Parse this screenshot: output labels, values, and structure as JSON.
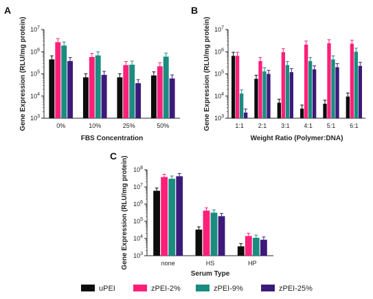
{
  "legend": {
    "items": [
      {
        "label": "uPEI",
        "color": "#0d0d0d"
      },
      {
        "label": "zPEI-2%",
        "color": "#ff1f78"
      },
      {
        "label": "zPEI-9%",
        "color": "#1a8c80"
      },
      {
        "label": "zPEI-25%",
        "color": "#3d1a7a"
      }
    ]
  },
  "chart_data": [
    {
      "panel": "A",
      "type": "bar",
      "yscale": "log",
      "ylim": [
        1000,
        10000000
      ],
      "yticks": [
        "10^3",
        "10^4",
        "10^5",
        "10^6",
        "10^7"
      ],
      "xlabel": "FBS Concentration",
      "ylabel": "Gene Expression (RLU/mg protein)",
      "categories": [
        "0%",
        "10%",
        "25%",
        "50%"
      ],
      "series": [
        {
          "name": "uPEI",
          "values": [
            450000,
            70000,
            70000,
            85000
          ]
        },
        {
          "name": "zPEI-2%",
          "values": [
            2700000,
            580000,
            250000,
            220000
          ]
        },
        {
          "name": "zPEI-9%",
          "values": [
            1900000,
            680000,
            260000,
            600000
          ]
        },
        {
          "name": "zPEI-25%",
          "values": [
            380000,
            90000,
            38000,
            62000
          ]
        }
      ]
    },
    {
      "panel": "B",
      "type": "bar",
      "yscale": "log",
      "ylim": [
        1000,
        10000000
      ],
      "yticks": [
        "10^3",
        "10^4",
        "10^5",
        "10^6",
        "10^7"
      ],
      "xlabel": "Weight Ratio (Polymer:DNA)",
      "ylabel": "Gene Expression (RLU/mg protein)",
      "categories": [
        "1:1",
        "2:1",
        "3:1",
        "4:1",
        "5:1",
        "6:1"
      ],
      "series": [
        {
          "name": "uPEI",
          "values": [
            650000,
            60000,
            5000,
            2700,
            4500,
            9500
          ]
        },
        {
          "name": "zPEI-2%",
          "values": [
            650000,
            380000,
            950000,
            2100000,
            2400000,
            2300000
          ]
        },
        {
          "name": "zPEI-9%",
          "values": [
            13000,
            130000,
            250000,
            380000,
            450000,
            1000000
          ]
        },
        {
          "name": "zPEI-25%",
          "values": [
            1800,
            100000,
            120000,
            160000,
            200000,
            230000
          ]
        }
      ]
    },
    {
      "panel": "C",
      "type": "bar",
      "yscale": "log",
      "ylim": [
        1000,
        100000000
      ],
      "yticks": [
        "10^3",
        "10^4",
        "10^5",
        "10^6",
        "10^7",
        "10^8"
      ],
      "xlabel": "Serum Type",
      "ylabel": "Gene Expression (RLU/mg protein)",
      "categories": [
        "none",
        "HS",
        "HP"
      ],
      "series": [
        {
          "name": "uPEI",
          "values": [
            6000000,
            33000,
            3500
          ]
        },
        {
          "name": "zPEI-2%",
          "values": [
            38000000,
            420000,
            14000
          ]
        },
        {
          "name": "zPEI-9%",
          "values": [
            30000000,
            320000,
            11000
          ]
        },
        {
          "name": "zPEI-25%",
          "values": [
            42000000,
            200000,
            8500
          ]
        }
      ]
    }
  ]
}
